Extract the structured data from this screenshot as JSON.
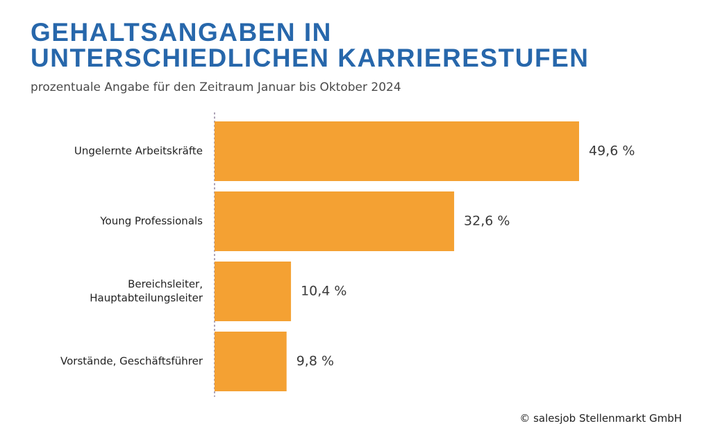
{
  "title": [
    "GEHALTSANGABEN IN",
    "UNTERSCHIEDLICHEN KARRIERESTUFEN"
  ],
  "subtitle": "prozentuale Angabe für den Zeitraum Januar bis Oktober 2024",
  "source": "© salesjob Stellenmarkt GmbH",
  "colors": {
    "title": "#2767ab",
    "bar": "#f4a133",
    "axis": "#7a6a8a"
  },
  "chart_data": {
    "type": "bar",
    "orientation": "horizontal",
    "categories": [
      [
        "Ungelernte Arbeitskräfte"
      ],
      [
        "Young Professionals"
      ],
      [
        "Bereichsleiter,",
        "Hauptabteilungsleiter"
      ],
      [
        "Vorstände, Geschäftsführer"
      ]
    ],
    "values": [
      49.6,
      32.6,
      10.4,
      9.8
    ],
    "value_labels": [
      "49,6 %",
      "32,6 %",
      "10,4 %",
      "9,8 %"
    ],
    "unit": "%",
    "xlim": [
      0,
      50
    ],
    "grid": false
  }
}
